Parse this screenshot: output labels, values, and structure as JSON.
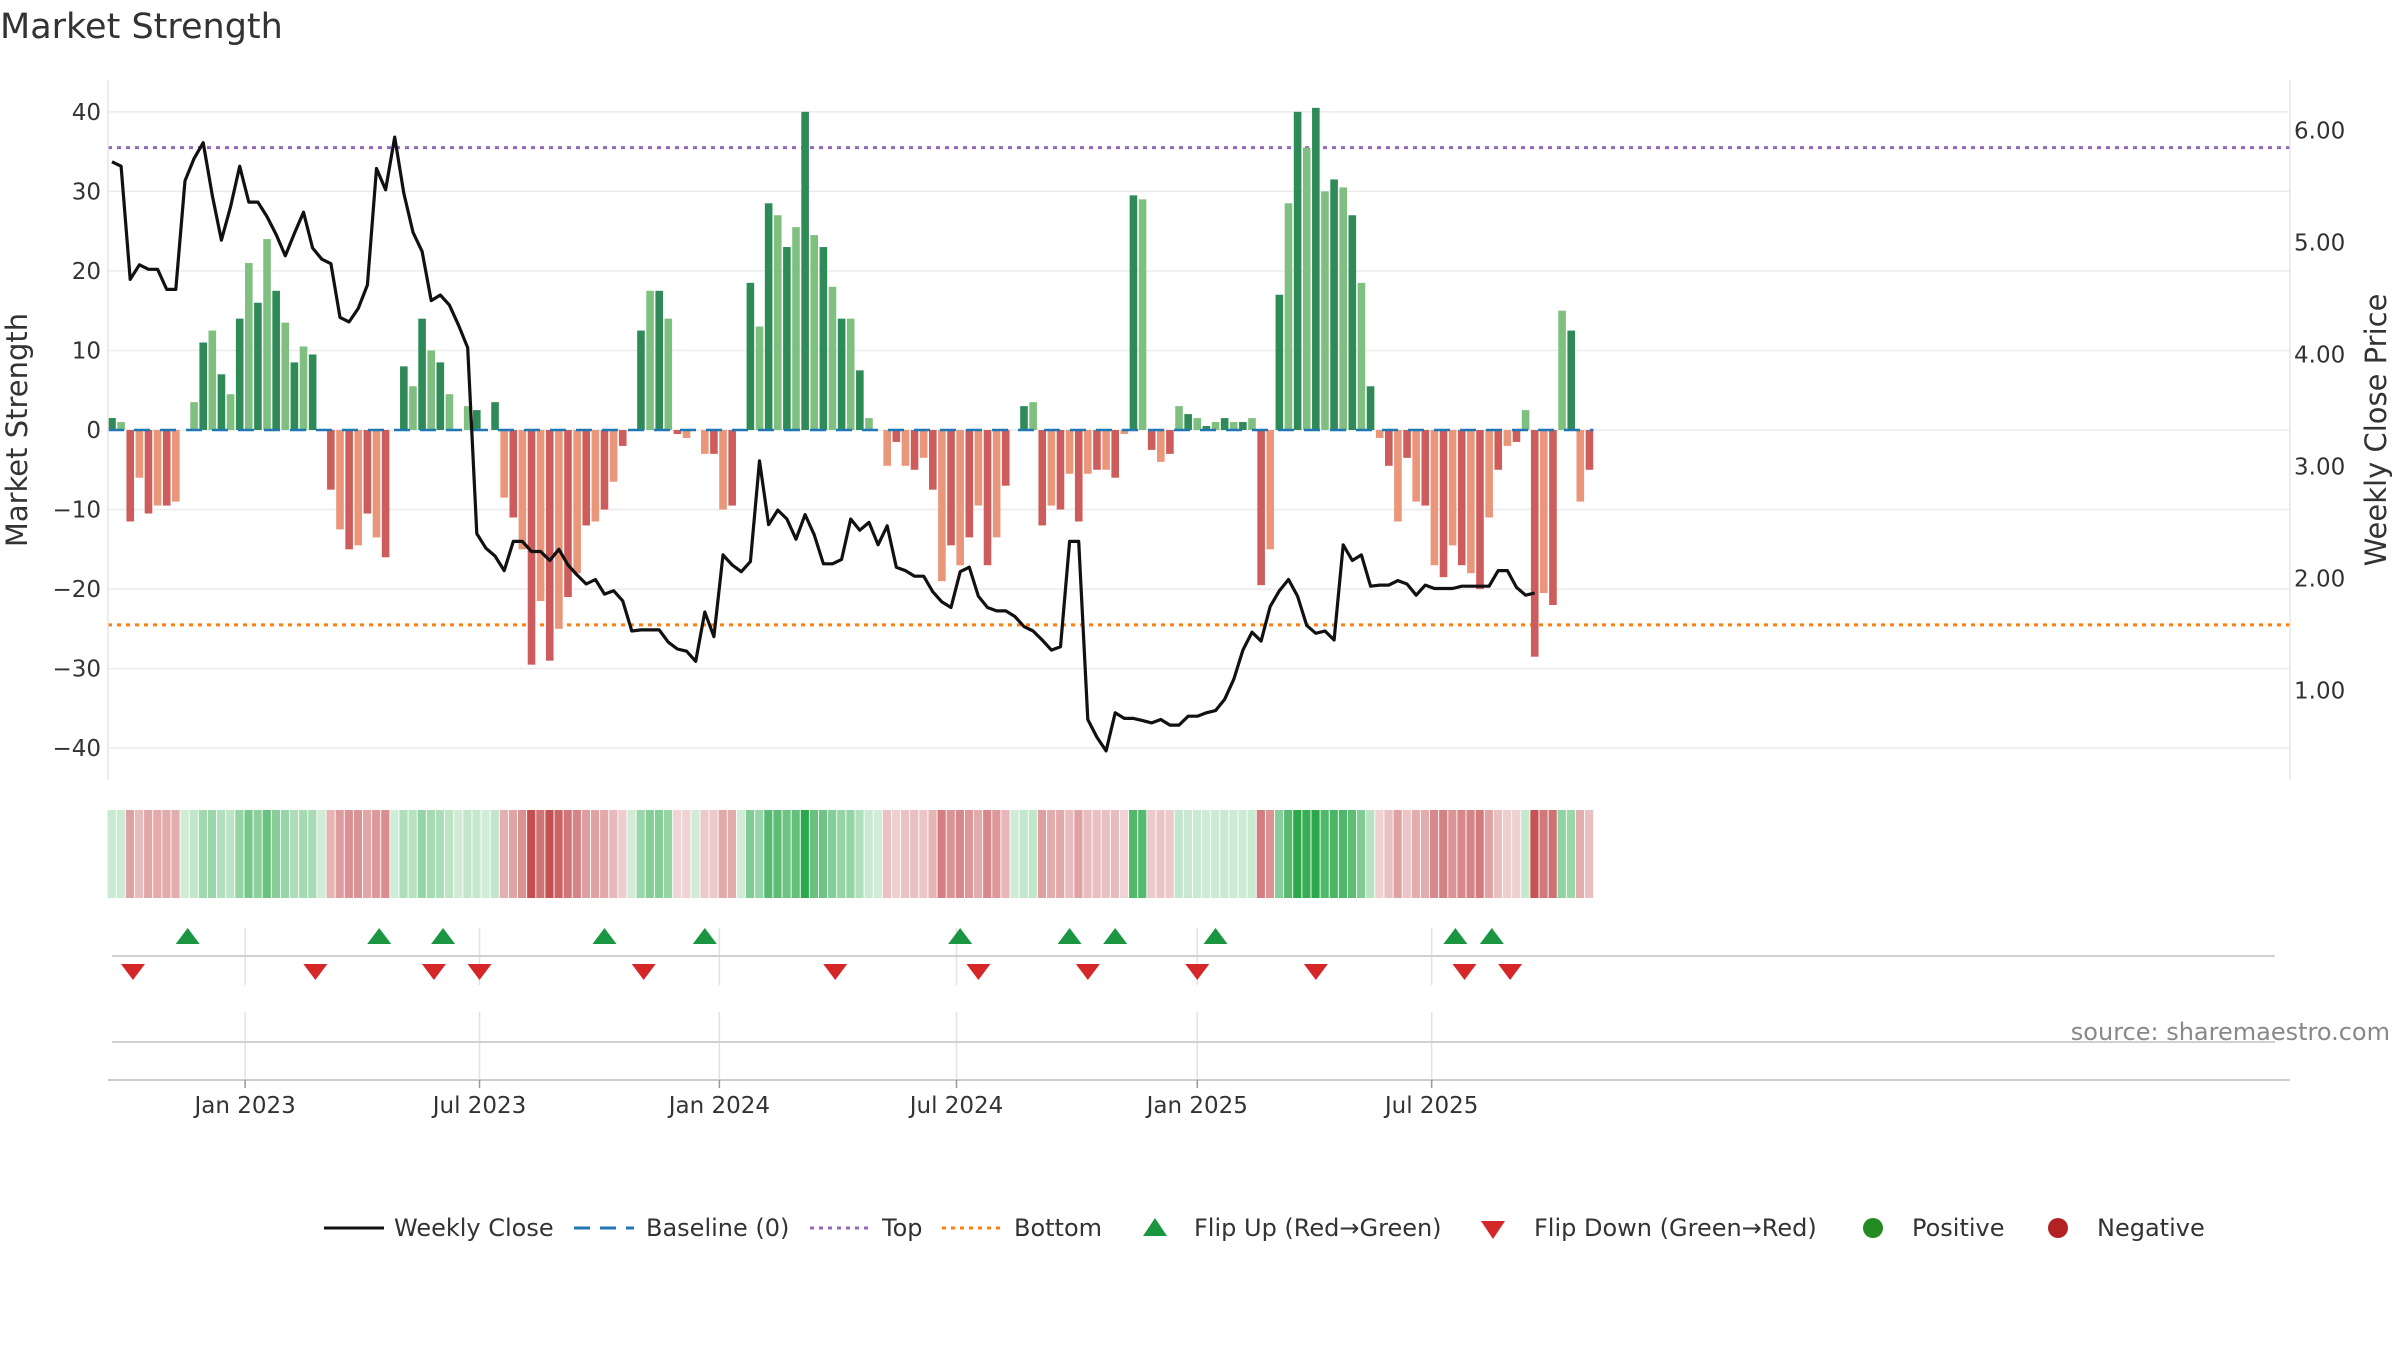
{
  "chart_data": {
    "type": "bar",
    "title": "Market Strength",
    "ylabel_left": "Market Strength",
    "ylabel_right": "Weekly Close Price",
    "source": "source: sharemaestro.com",
    "y_left_range": [
      -44,
      44
    ],
    "y_left_ticks": [
      40,
      30,
      20,
      10,
      0,
      -10,
      -20,
      -30,
      -40
    ],
    "y_left_tick_labels": [
      "40",
      "30",
      "20",
      "10",
      "0",
      "−10",
      "−20",
      "−30",
      "−40"
    ],
    "y_right_range": [
      0.2,
      6.45
    ],
    "y_right_ticks": [
      6,
      5,
      4,
      3,
      2,
      1
    ],
    "y_right_tick_labels": [
      "6.00",
      "5.00",
      "4.00",
      "3.00",
      "2.00",
      "1.00"
    ],
    "x_tick_labels": [
      "Jan 2023",
      "Jul 2023",
      "Jan 2024",
      "Jul 2024",
      "Jan 2025",
      "Jul 2025"
    ],
    "x_tick_weeks": [
      14.6,
      40.3,
      66.6,
      92.6,
      119,
      144.7
    ],
    "top_line": 35.5,
    "bottom_line": -24.5,
    "baseline": 0,
    "strength": [
      1.5,
      1,
      -11.5,
      -6,
      -10.5,
      -9.5,
      -9.5,
      -9,
      0,
      3.5,
      11,
      12.5,
      7,
      4.5,
      14,
      21,
      16,
      24,
      17.5,
      13.5,
      8.5,
      10.5,
      9.5,
      0,
      -7.5,
      -12.5,
      -15,
      -14.5,
      -10.5,
      -13.5,
      -16,
      0,
      8,
      5.5,
      14,
      10,
      8.5,
      4.5,
      0,
      3,
      2.5,
      0,
      3.5,
      -8.5,
      -11,
      -15,
      -29.5,
      -21.5,
      -29,
      -25,
      -21,
      -18,
      -12,
      -11.5,
      -10,
      -6.5,
      -2,
      0,
      12.5,
      17.5,
      17.5,
      14,
      -0.5,
      -1,
      0,
      -3,
      -3,
      -10,
      -9.5,
      0,
      18.5,
      13,
      28.5,
      27,
      23,
      25.5,
      40,
      24.5,
      23,
      18,
      14,
      14,
      7.5,
      1.5,
      0,
      -4.5,
      -1.5,
      -4.5,
      -5,
      -3.5,
      -7.5,
      -19,
      -14.5,
      -17,
      -13.5,
      -9.5,
      -17,
      -13.5,
      -7,
      0,
      3,
      3.5,
      -12,
      -9.5,
      -10,
      -5.5,
      -11.5,
      -5.5,
      -5,
      -5,
      -6,
      -0.5,
      29.5,
      29,
      -2.5,
      -4,
      -3,
      3,
      2,
      1.5,
      0.5,
      1,
      1.5,
      1,
      1,
      1.5,
      -19.5,
      -15,
      17,
      28.5,
      40,
      35.5,
      40.5,
      30,
      31.5,
      30.5,
      27,
      18.5,
      5.5,
      -1,
      -4.5,
      -11.5,
      -3.5,
      -9,
      -9.5,
      -17,
      -18.5,
      -14.5,
      -17,
      -18,
      -20,
      -11,
      -5,
      -2,
      -1.5,
      2.5,
      -28.5,
      -20.5,
      -22,
      15,
      12.5,
      -9,
      -5
    ],
    "weekly_close": [
      5.72,
      5.68,
      4.67,
      4.8,
      4.76,
      4.76,
      4.58,
      4.58,
      5.55,
      5.75,
      5.89,
      5.42,
      5.02,
      5.32,
      5.68,
      5.36,
      5.36,
      5.23,
      5.07,
      4.88,
      5.08,
      5.27,
      4.95,
      4.85,
      4.81,
      4.33,
      4.29,
      4.41,
      4.62,
      5.66,
      5.47,
      5.94,
      5.44,
      5.09,
      4.92,
      4.48,
      4.53,
      4.44,
      4.26,
      4.06,
      2.4,
      2.27,
      2.2,
      2.07,
      2.33,
      2.33,
      2.24,
      2.24,
      2.16,
      2.26,
      2.12,
      2.03,
      1.95,
      1.99,
      1.86,
      1.89,
      1.8,
      1.53,
      1.54,
      1.54,
      1.54,
      1.43,
      1.37,
      1.35,
      1.26,
      1.7,
      1.48,
      2.21,
      2.12,
      2.06,
      2.15,
      3.05,
      2.48,
      2.61,
      2.53,
      2.35,
      2.57,
      2.39,
      2.13,
      2.13,
      2.17,
      2.53,
      2.43,
      2.5,
      2.3,
      2.47,
      2.1,
      2.07,
      2.02,
      2.02,
      1.88,
      1.79,
      1.74,
      2.06,
      2.1,
      1.84,
      1.74,
      1.71,
      1.71,
      1.66,
      1.57,
      1.53,
      1.45,
      1.36,
      1.39,
      2.33,
      2.33,
      0.74,
      0.58,
      0.46,
      0.8,
      0.75,
      0.75,
      0.73,
      0.71,
      0.74,
      0.69,
      0.69,
      0.77,
      0.77,
      0.8,
      0.82,
      0.92,
      1.1,
      1.36,
      1.52,
      1.44,
      1.75,
      1.89,
      1.99,
      1.84,
      1.58,
      1.51,
      1.53,
      1.45,
      2.3,
      2.16,
      2.21,
      1.93,
      1.94,
      1.94,
      1.98,
      1.95,
      1.85,
      1.94,
      1.91,
      1.91,
      1.91,
      1.93,
      1.93,
      1.93,
      1.93,
      2.07,
      2.07,
      1.92,
      1.85,
      1.87
    ],
    "heat_strip": {
      "positive_color": "#2aa84a",
      "negative_color": "#c0474a"
    },
    "flip_up_weeks": [
      8.3,
      29.3,
      36.3,
      54,
      65,
      93,
      105,
      110,
      121,
      147.3,
      151.3
    ],
    "flip_down_weeks": [
      2.3,
      22.3,
      35.3,
      40.3,
      58.3,
      79.3,
      95,
      107,
      119,
      132,
      148.3,
      153.3
    ],
    "colors": {
      "bar_pos_dark": "#2e8b57",
      "bar_pos_light": "#7fbf7f",
      "bar_neg_dark": "#cd5c5c",
      "bar_neg_light": "#e9967a",
      "close_line": "#111111",
      "baseline": "#1f77b4",
      "top_line": "#9467bd",
      "bottom_line": "#ff7f0e",
      "flip_up": "#1a9641",
      "flip_down": "#d62728",
      "positive_dot": "#228b22",
      "negative_dot": "#b22222"
    },
    "legend": {
      "weekly_close": "Weekly Close",
      "baseline": "Baseline (0)",
      "top": "Top",
      "bottom": "Bottom",
      "flip_up": "Flip Up (Red→Green)",
      "flip_down": "Flip Down (Green→Red)",
      "positive": "Positive",
      "negative": "Negative"
    }
  }
}
